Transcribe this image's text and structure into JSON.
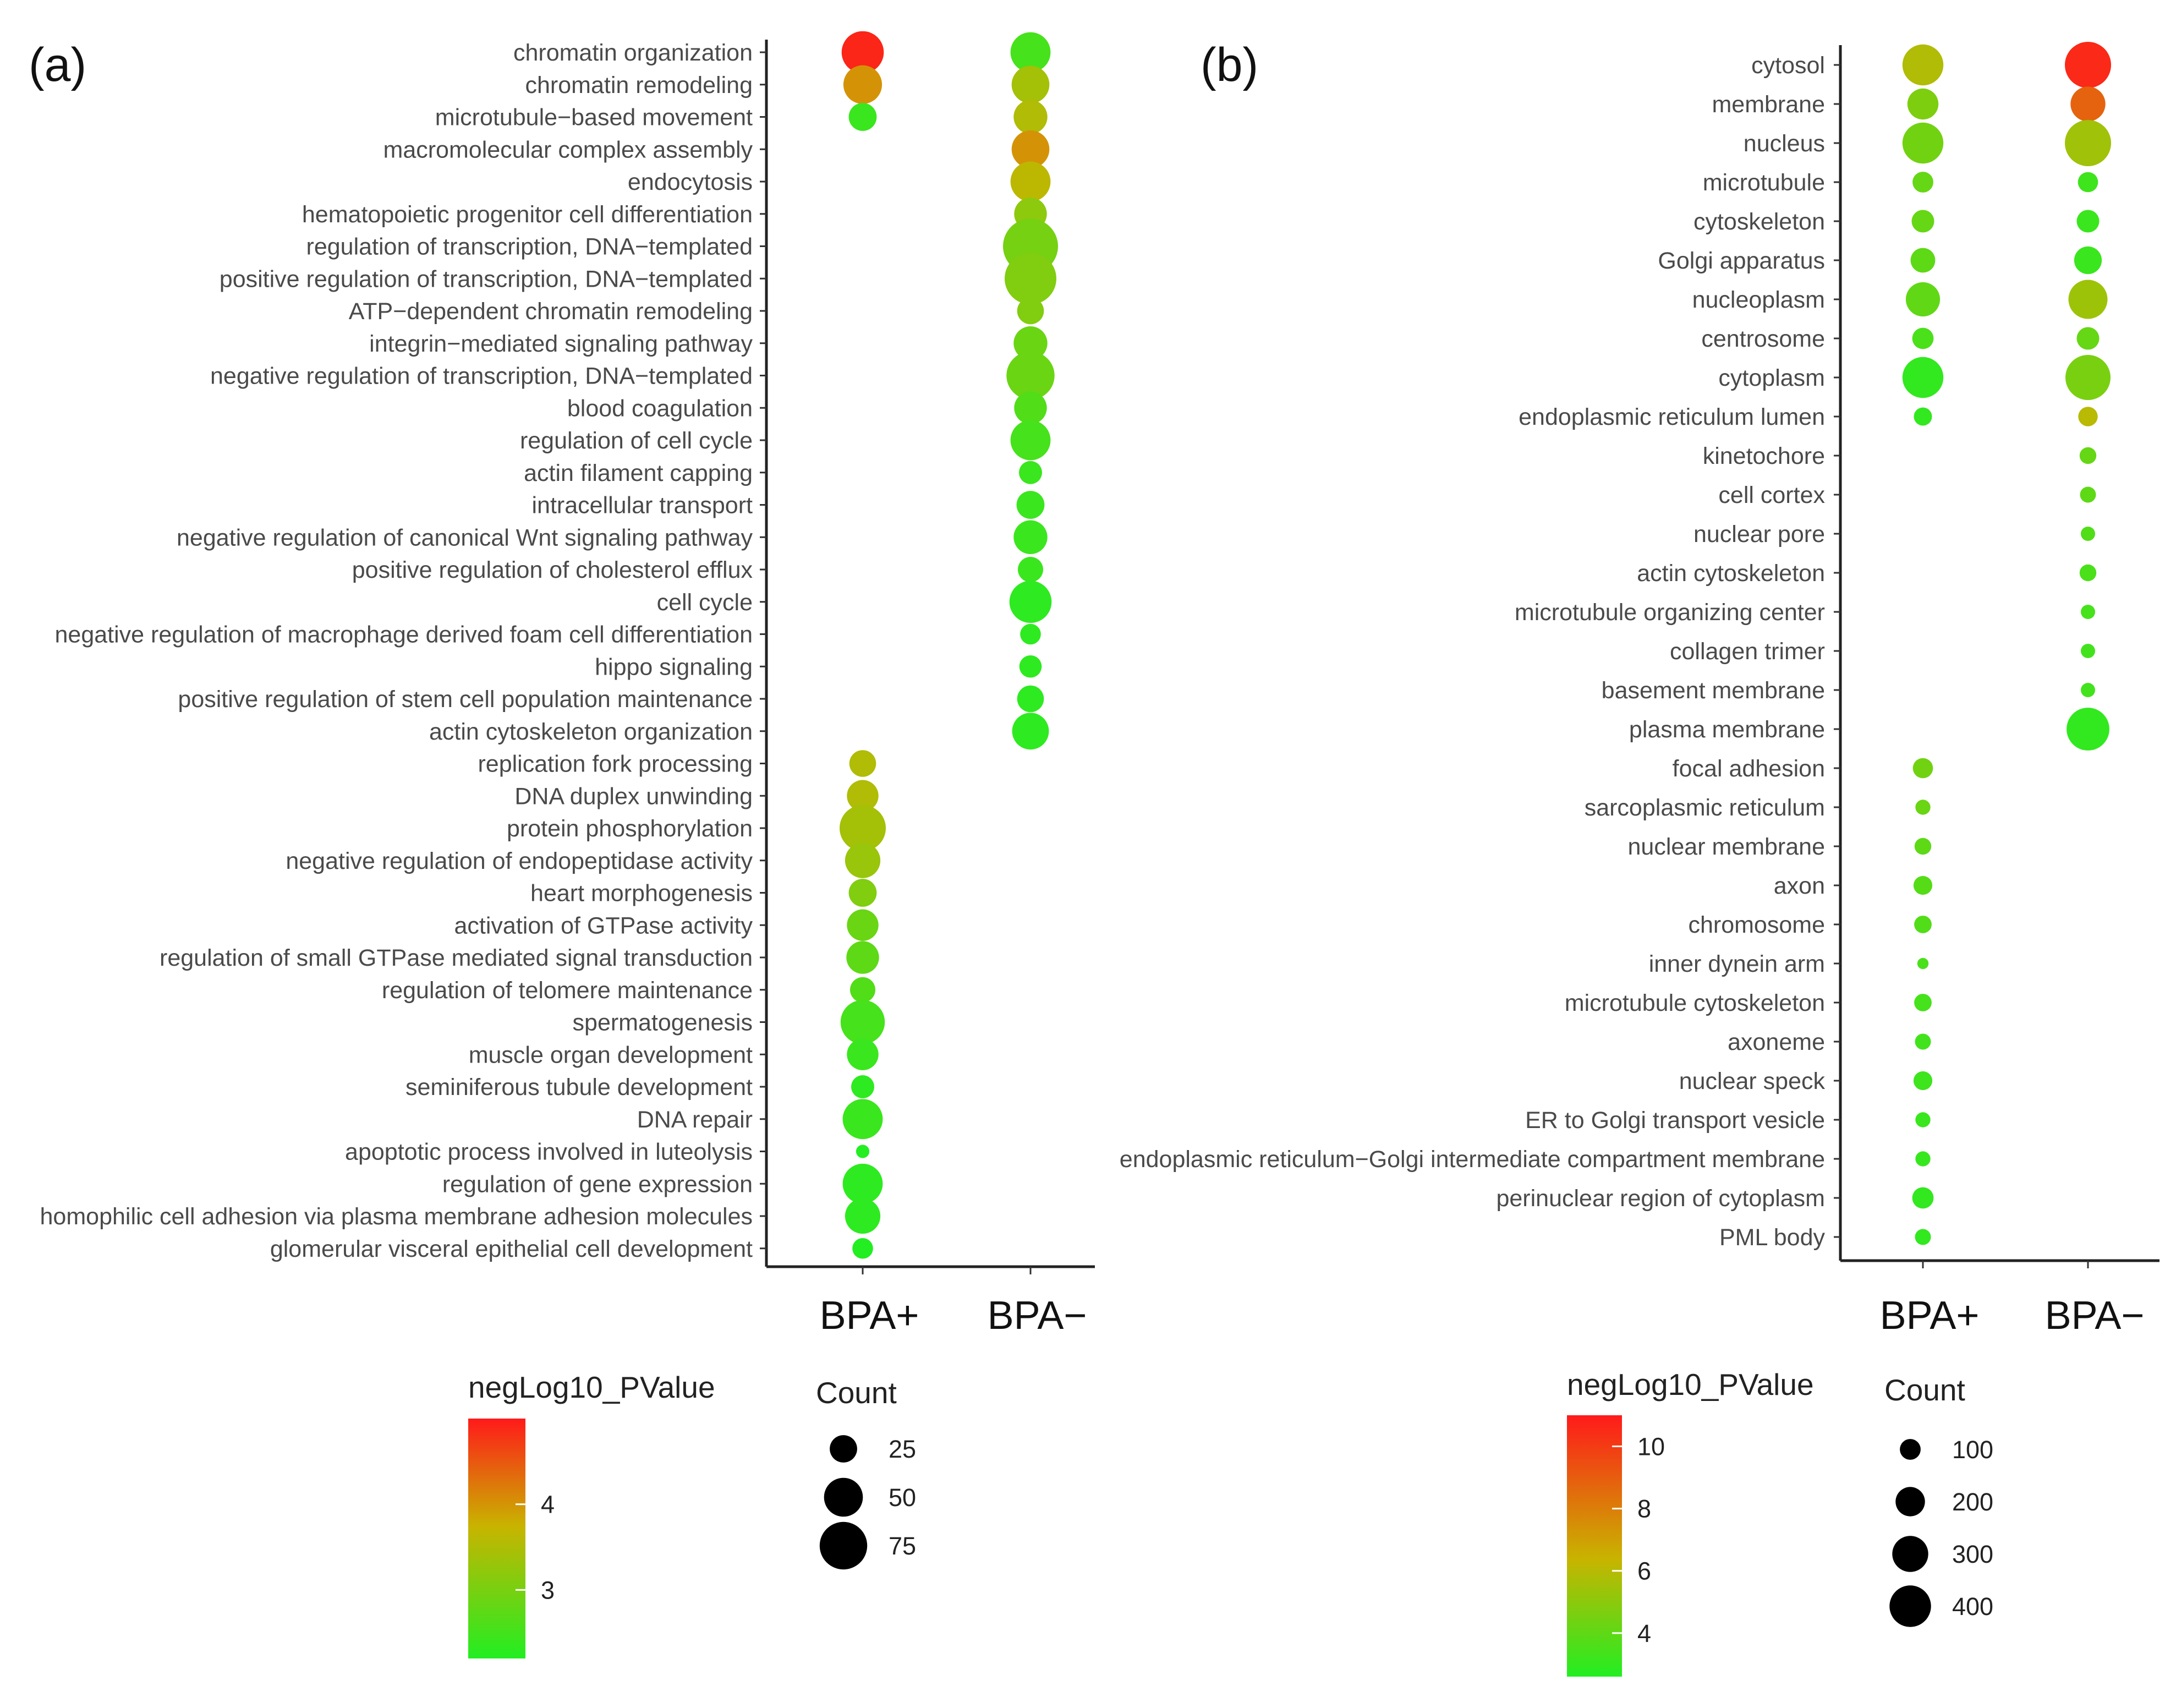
{
  "figure": {
    "panel_a_label": "(a)",
    "panel_b_label": "(b)"
  },
  "chart_data": [
    {
      "type": "scatter",
      "panel": "(a)",
      "title": "",
      "xlabel": "",
      "ylabel": "",
      "categories": [
        "BPA+",
        "BPA−"
      ],
      "terms": [
        "chromatin organization",
        "chromatin remodeling",
        "microtubule−based movement",
        "macromolecular complex assembly",
        "endocytosis",
        "hematopoietic progenitor cell differentiation",
        "regulation of transcription, DNA−templated",
        "positive regulation of transcription, DNA−templated",
        "ATP−dependent chromatin remodeling",
        "integrin−mediated signaling pathway",
        "negative regulation of transcription, DNA−templated",
        "blood coagulation",
        "regulation of cell cycle",
        "actin filament capping",
        "intracellular transport",
        "negative regulation of canonical Wnt signaling pathway",
        "positive regulation of cholesterol efflux",
        "cell cycle",
        "negative regulation of macrophage derived foam cell differentiation",
        "hippo signaling",
        "positive regulation of stem cell population maintenance",
        "actin cytoskeleton organization",
        "replication fork processing",
        "DNA duplex unwinding",
        "protein phosphorylation",
        "negative regulation of endopeptidase activity",
        "heart morphogenesis",
        "activation of GTPase activity",
        "regulation of small GTPase mediated signal transduction",
        "regulation of telomere maintenance",
        "spermatogenesis",
        "muscle organ development",
        "seminiferous tubule development",
        "DNA repair",
        "apoptotic process involved in luteolysis",
        "regulation of gene expression",
        "homophilic cell adhesion via plasma membrane adhesion molecules",
        "glomerular visceral epithelial cell development"
      ],
      "points": [
        {
          "term": "chromatin organization",
          "group": "BPA+",
          "count": 50,
          "negLog10_PValue": 4.9
        },
        {
          "term": "chromatin organization",
          "group": "BPA−",
          "count": 45,
          "negLog10_PValue": 2.5
        },
        {
          "term": "chromatin remodeling",
          "group": "BPA+",
          "count": 42,
          "negLog10_PValue": 3.9
        },
        {
          "term": "chromatin remodeling",
          "group": "BPA−",
          "count": 40,
          "negLog10_PValue": 3.3
        },
        {
          "term": "microtubule−based movement",
          "group": "BPA+",
          "count": 22,
          "negLog10_PValue": 2.4
        },
        {
          "term": "microtubule−based movement",
          "group": "BPA−",
          "count": 32,
          "negLog10_PValue": 3.4
        },
        {
          "term": "macromolecular complex assembly",
          "group": "BPA−",
          "count": 40,
          "negLog10_PValue": 3.9
        },
        {
          "term": "endocytosis",
          "group": "BPA−",
          "count": 45,
          "negLog10_PValue": 3.5
        },
        {
          "term": "hematopoietic progenitor cell differentiation",
          "group": "BPA−",
          "count": 30,
          "negLog10_PValue": 3.1
        },
        {
          "term": "regulation of transcription, DNA−templated",
          "group": "BPA−",
          "count": 85,
          "negLog10_PValue": 2.9
        },
        {
          "term": "positive regulation of transcription, DNA−templated",
          "group": "BPA−",
          "count": 75,
          "negLog10_PValue": 3.0
        },
        {
          "term": "ATP−dependent chromatin remodeling",
          "group": "BPA−",
          "count": 20,
          "negLog10_PValue": 3.0
        },
        {
          "term": "integrin−mediated signaling pathway",
          "group": "BPA−",
          "count": 32,
          "negLog10_PValue": 2.8
        },
        {
          "term": "negative regulation of transcription, DNA−templated",
          "group": "BPA−",
          "count": 65,
          "negLog10_PValue": 2.8
        },
        {
          "term": "blood coagulation",
          "group": "BPA−",
          "count": 30,
          "negLog10_PValue": 2.6
        },
        {
          "term": "regulation of cell cycle",
          "group": "BPA−",
          "count": 45,
          "negLog10_PValue": 2.5
        },
        {
          "term": "actin filament capping",
          "group": "BPA−",
          "count": 15,
          "negLog10_PValue": 2.4
        },
        {
          "term": "intracellular transport",
          "group": "BPA−",
          "count": 22,
          "negLog10_PValue": 2.4
        },
        {
          "term": "negative regulation of canonical Wnt signaling pathway",
          "group": "BPA−",
          "count": 32,
          "negLog10_PValue": 2.4
        },
        {
          "term": "positive regulation of cholesterol efflux",
          "group": "BPA−",
          "count": 18,
          "negLog10_PValue": 2.4
        },
        {
          "term": "cell cycle",
          "group": "BPA−",
          "count": 50,
          "negLog10_PValue": 2.3
        },
        {
          "term": "negative regulation of macrophage derived foam cell differentiation",
          "group": "BPA−",
          "count": 12,
          "negLog10_PValue": 2.3
        },
        {
          "term": "hippo signaling",
          "group": "BPA−",
          "count": 14,
          "negLog10_PValue": 2.3
        },
        {
          "term": "positive regulation of stem cell population maintenance",
          "group": "BPA−",
          "count": 20,
          "negLog10_PValue": 2.3
        },
        {
          "term": "actin cytoskeleton organization",
          "group": "BPA−",
          "count": 38,
          "negLog10_PValue": 2.3
        },
        {
          "term": "replication fork processing",
          "group": "BPA+",
          "count": 20,
          "negLog10_PValue": 3.4
        },
        {
          "term": "DNA duplex unwinding",
          "group": "BPA+",
          "count": 28,
          "negLog10_PValue": 3.4
        },
        {
          "term": "protein phosphorylation",
          "group": "BPA+",
          "count": 60,
          "negLog10_PValue": 3.3
        },
        {
          "term": "negative regulation of endopeptidase activity",
          "group": "BPA+",
          "count": 35,
          "negLog10_PValue": 3.2
        },
        {
          "term": "heart morphogenesis",
          "group": "BPA+",
          "count": 22,
          "negLog10_PValue": 3.0
        },
        {
          "term": "activation of GTPase activity",
          "group": "BPA+",
          "count": 28,
          "negLog10_PValue": 2.8
        },
        {
          "term": "regulation of small GTPase mediated signal transduction",
          "group": "BPA+",
          "count": 30,
          "negLog10_PValue": 2.7
        },
        {
          "term": "regulation of telomere maintenance",
          "group": "BPA+",
          "count": 18,
          "negLog10_PValue": 2.6
        },
        {
          "term": "spermatogenesis",
          "group": "BPA+",
          "count": 55,
          "negLog10_PValue": 2.5
        },
        {
          "term": "muscle organ development",
          "group": "BPA+",
          "count": 28,
          "negLog10_PValue": 2.4
        },
        {
          "term": "seminiferous tubule development",
          "group": "BPA+",
          "count": 15,
          "negLog10_PValue": 2.3
        },
        {
          "term": "DNA repair",
          "group": "BPA+",
          "count": 45,
          "negLog10_PValue": 2.4
        },
        {
          "term": "apoptotic process involved in luteolysis",
          "group": "BPA+",
          "count": 5,
          "negLog10_PValue": 2.2
        },
        {
          "term": "regulation of gene expression",
          "group": "BPA+",
          "count": 45,
          "negLog10_PValue": 2.3
        },
        {
          "term": "homophilic cell adhesion via plasma membrane adhesion molecules",
          "group": "BPA+",
          "count": 35,
          "negLog10_PValue": 2.3
        },
        {
          "term": "glomerular visceral epithelial cell development",
          "group": "BPA+",
          "count": 12,
          "negLog10_PValue": 2.2
        }
      ],
      "color_legend": {
        "title": "negLog10_PValue",
        "ticks": [
          3,
          4
        ],
        "range": [
          2.2,
          5.0
        ],
        "low_color": "#22ee22",
        "mid_color": "#c8b400",
        "high_color": "#ff1a1a"
      },
      "size_legend": {
        "title": "Count",
        "values": [
          25,
          50,
          75
        ],
        "max": 85
      }
    },
    {
      "type": "scatter",
      "panel": "(b)",
      "title": "",
      "xlabel": "",
      "ylabel": "",
      "categories": [
        "BPA+",
        "BPA−"
      ],
      "terms": [
        "cytosol",
        "membrane",
        "nucleus",
        "microtubule",
        "cytoskeleton",
        "Golgi apparatus",
        "nucleoplasm",
        "centrosome",
        "cytoplasm",
        "endoplasmic reticulum lumen",
        "kinetochore",
        "cell cortex",
        "nuclear pore",
        "actin cytoskeleton",
        "microtubule organizing center",
        "collagen trimer",
        "basement membrane",
        "plasma membrane",
        "focal adhesion",
        "sarcoplasmic reticulum",
        "nuclear membrane",
        "axon",
        "chromosome",
        "inner dynein arm",
        "microtubule cytoskeleton",
        "axoneme",
        "nuclear speck",
        "ER to Golgi transport vesicle",
        "endoplasmic reticulum−Golgi intermediate compartment membrane",
        "perinuclear region of cytoplasm",
        "PML body"
      ],
      "points": [
        {
          "term": "cytosol",
          "group": "BPA+",
          "count": 330,
          "negLog10_PValue": 6.2
        },
        {
          "term": "cytosol",
          "group": "BPA−",
          "count": 420,
          "negLog10_PValue": 10.6
        },
        {
          "term": "membrane",
          "group": "BPA+",
          "count": 190,
          "negLog10_PValue": 4.9
        },
        {
          "term": "membrane",
          "group": "BPA−",
          "count": 240,
          "negLog10_PValue": 9.0
        },
        {
          "term": "nucleus",
          "group": "BPA+",
          "count": 330,
          "negLog10_PValue": 4.6
        },
        {
          "term": "nucleus",
          "group": "BPA−",
          "count": 420,
          "negLog10_PValue": 5.8
        },
        {
          "term": "microtubule",
          "group": "BPA+",
          "count": 85,
          "negLog10_PValue": 4.3
        },
        {
          "term": "microtubule",
          "group": "BPA−",
          "count": 80,
          "negLog10_PValue": 3.3
        },
        {
          "term": "cytoskeleton",
          "group": "BPA+",
          "count": 100,
          "negLog10_PValue": 4.3
        },
        {
          "term": "cytoskeleton",
          "group": "BPA−",
          "count": 100,
          "negLog10_PValue": 3.2
        },
        {
          "term": "Golgi apparatus",
          "group": "BPA+",
          "count": 120,
          "negLog10_PValue": 4.1
        },
        {
          "term": "Golgi apparatus",
          "group": "BPA−",
          "count": 150,
          "negLog10_PValue": 3.2
        },
        {
          "term": "nucleoplasm",
          "group": "BPA+",
          "count": 230,
          "negLog10_PValue": 4.2
        },
        {
          "term": "nucleoplasm",
          "group": "BPA−",
          "count": 300,
          "negLog10_PValue": 5.7
        },
        {
          "term": "centrosome",
          "group": "BPA+",
          "count": 90,
          "negLog10_PValue": 3.6
        },
        {
          "term": "centrosome",
          "group": "BPA−",
          "count": 100,
          "negLog10_PValue": 4.3
        },
        {
          "term": "cytoplasm",
          "group": "BPA+",
          "count": 330,
          "negLog10_PValue": 3.0
        },
        {
          "term": "cytoplasm",
          "group": "BPA−",
          "count": 400,
          "negLog10_PValue": 4.8
        },
        {
          "term": "endoplasmic reticulum lumen",
          "group": "BPA+",
          "count": 65,
          "negLog10_PValue": 3.0
        },
        {
          "term": "endoplasmic reticulum lumen",
          "group": "BPA−",
          "count": 75,
          "negLog10_PValue": 6.4
        },
        {
          "term": "kinetochore",
          "group": "BPA−",
          "count": 55,
          "negLog10_PValue": 4.3
        },
        {
          "term": "cell cortex",
          "group": "BPA−",
          "count": 50,
          "negLog10_PValue": 4.1
        },
        {
          "term": "nuclear pore",
          "group": "BPA−",
          "count": 40,
          "negLog10_PValue": 3.8
        },
        {
          "term": "actin cytoskeleton",
          "group": "BPA−",
          "count": 55,
          "negLog10_PValue": 3.6
        },
        {
          "term": "microtubule organizing center",
          "group": "BPA−",
          "count": 40,
          "negLog10_PValue": 3.5
        },
        {
          "term": "collagen trimer",
          "group": "BPA−",
          "count": 40,
          "negLog10_PValue": 3.4
        },
        {
          "term": "basement membrane",
          "group": "BPA−",
          "count": 40,
          "negLog10_PValue": 3.4
        },
        {
          "term": "plasma membrane",
          "group": "BPA−",
          "count": 360,
          "negLog10_PValue": 3.0
        },
        {
          "term": "focal adhesion",
          "group": "BPA+",
          "count": 80,
          "negLog10_PValue": 4.6
        },
        {
          "term": "sarcoplasmic reticulum",
          "group": "BPA+",
          "count": 45,
          "negLog10_PValue": 4.4
        },
        {
          "term": "nuclear membrane",
          "group": "BPA+",
          "count": 55,
          "negLog10_PValue": 4.1
        },
        {
          "term": "axon",
          "group": "BPA+",
          "count": 70,
          "negLog10_PValue": 3.9
        },
        {
          "term": "chromosome",
          "group": "BPA+",
          "count": 60,
          "negLog10_PValue": 3.8
        },
        {
          "term": "inner dynein arm",
          "group": "BPA+",
          "count": 25,
          "negLog10_PValue": 3.6
        },
        {
          "term": "microtubule cytoskeleton",
          "group": "BPA+",
          "count": 60,
          "negLog10_PValue": 3.5
        },
        {
          "term": "axoneme",
          "group": "BPA+",
          "count": 50,
          "negLog10_PValue": 3.4
        },
        {
          "term": "nuclear speck",
          "group": "BPA+",
          "count": 70,
          "negLog10_PValue": 3.3
        },
        {
          "term": "ER to Golgi transport vesicle",
          "group": "BPA+",
          "count": 45,
          "negLog10_PValue": 3.2
        },
        {
          "term": "endoplasmic reticulum−Golgi intermediate compartment membrane",
          "group": "BPA+",
          "count": 45,
          "negLog10_PValue": 3.1
        },
        {
          "term": "perinuclear region of cytoplasm",
          "group": "BPA+",
          "count": 90,
          "negLog10_PValue": 3.0
        },
        {
          "term": "PML body",
          "group": "BPA+",
          "count": 50,
          "negLog10_PValue": 3.0
        }
      ],
      "color_legend": {
        "title": "negLog10_PValue",
        "ticks": [
          4,
          6,
          8,
          10
        ],
        "range": [
          2.6,
          11.0
        ],
        "low_color": "#22ee22",
        "mid_color": "#c8b400",
        "high_color": "#ff1a1a"
      },
      "size_legend": {
        "title": "Count",
        "values": [
          100,
          200,
          300,
          400
        ],
        "max": 420
      }
    }
  ]
}
